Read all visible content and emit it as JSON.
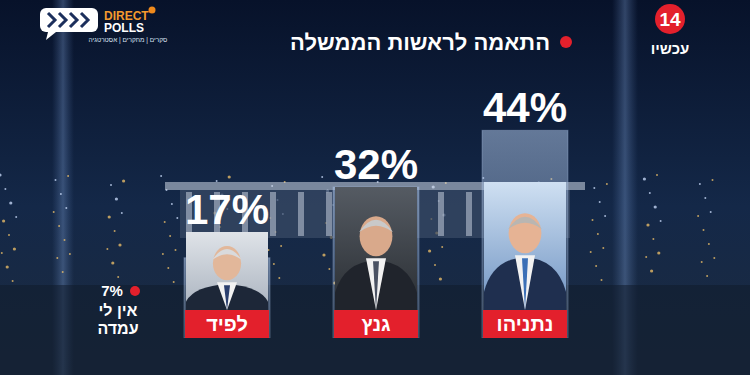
{
  "chart_data": {
    "type": "bar",
    "title": "התאמה לראשות הממשלה",
    "categories": [
      "לפיד",
      "גנץ",
      "נתניהו"
    ],
    "values": [
      17,
      32,
      44
    ],
    "value_labels": [
      "17%",
      "32%",
      "44%"
    ],
    "data_labels": true,
    "color": "#a9c1e3",
    "ylim": [
      0,
      50
    ],
    "tick_labels": false,
    "grid": false,
    "annotations": [
      {
        "text": "אין לי עמדה",
        "value": 7,
        "value_label": "7%"
      }
    ]
  },
  "branding": {
    "logo": [
      "DIRECT",
      "POLLS"
    ],
    "tagline": "סקרים | מחקרים | אסטרטגיה",
    "channel": "14",
    "channel_name": "עכשיו"
  }
}
